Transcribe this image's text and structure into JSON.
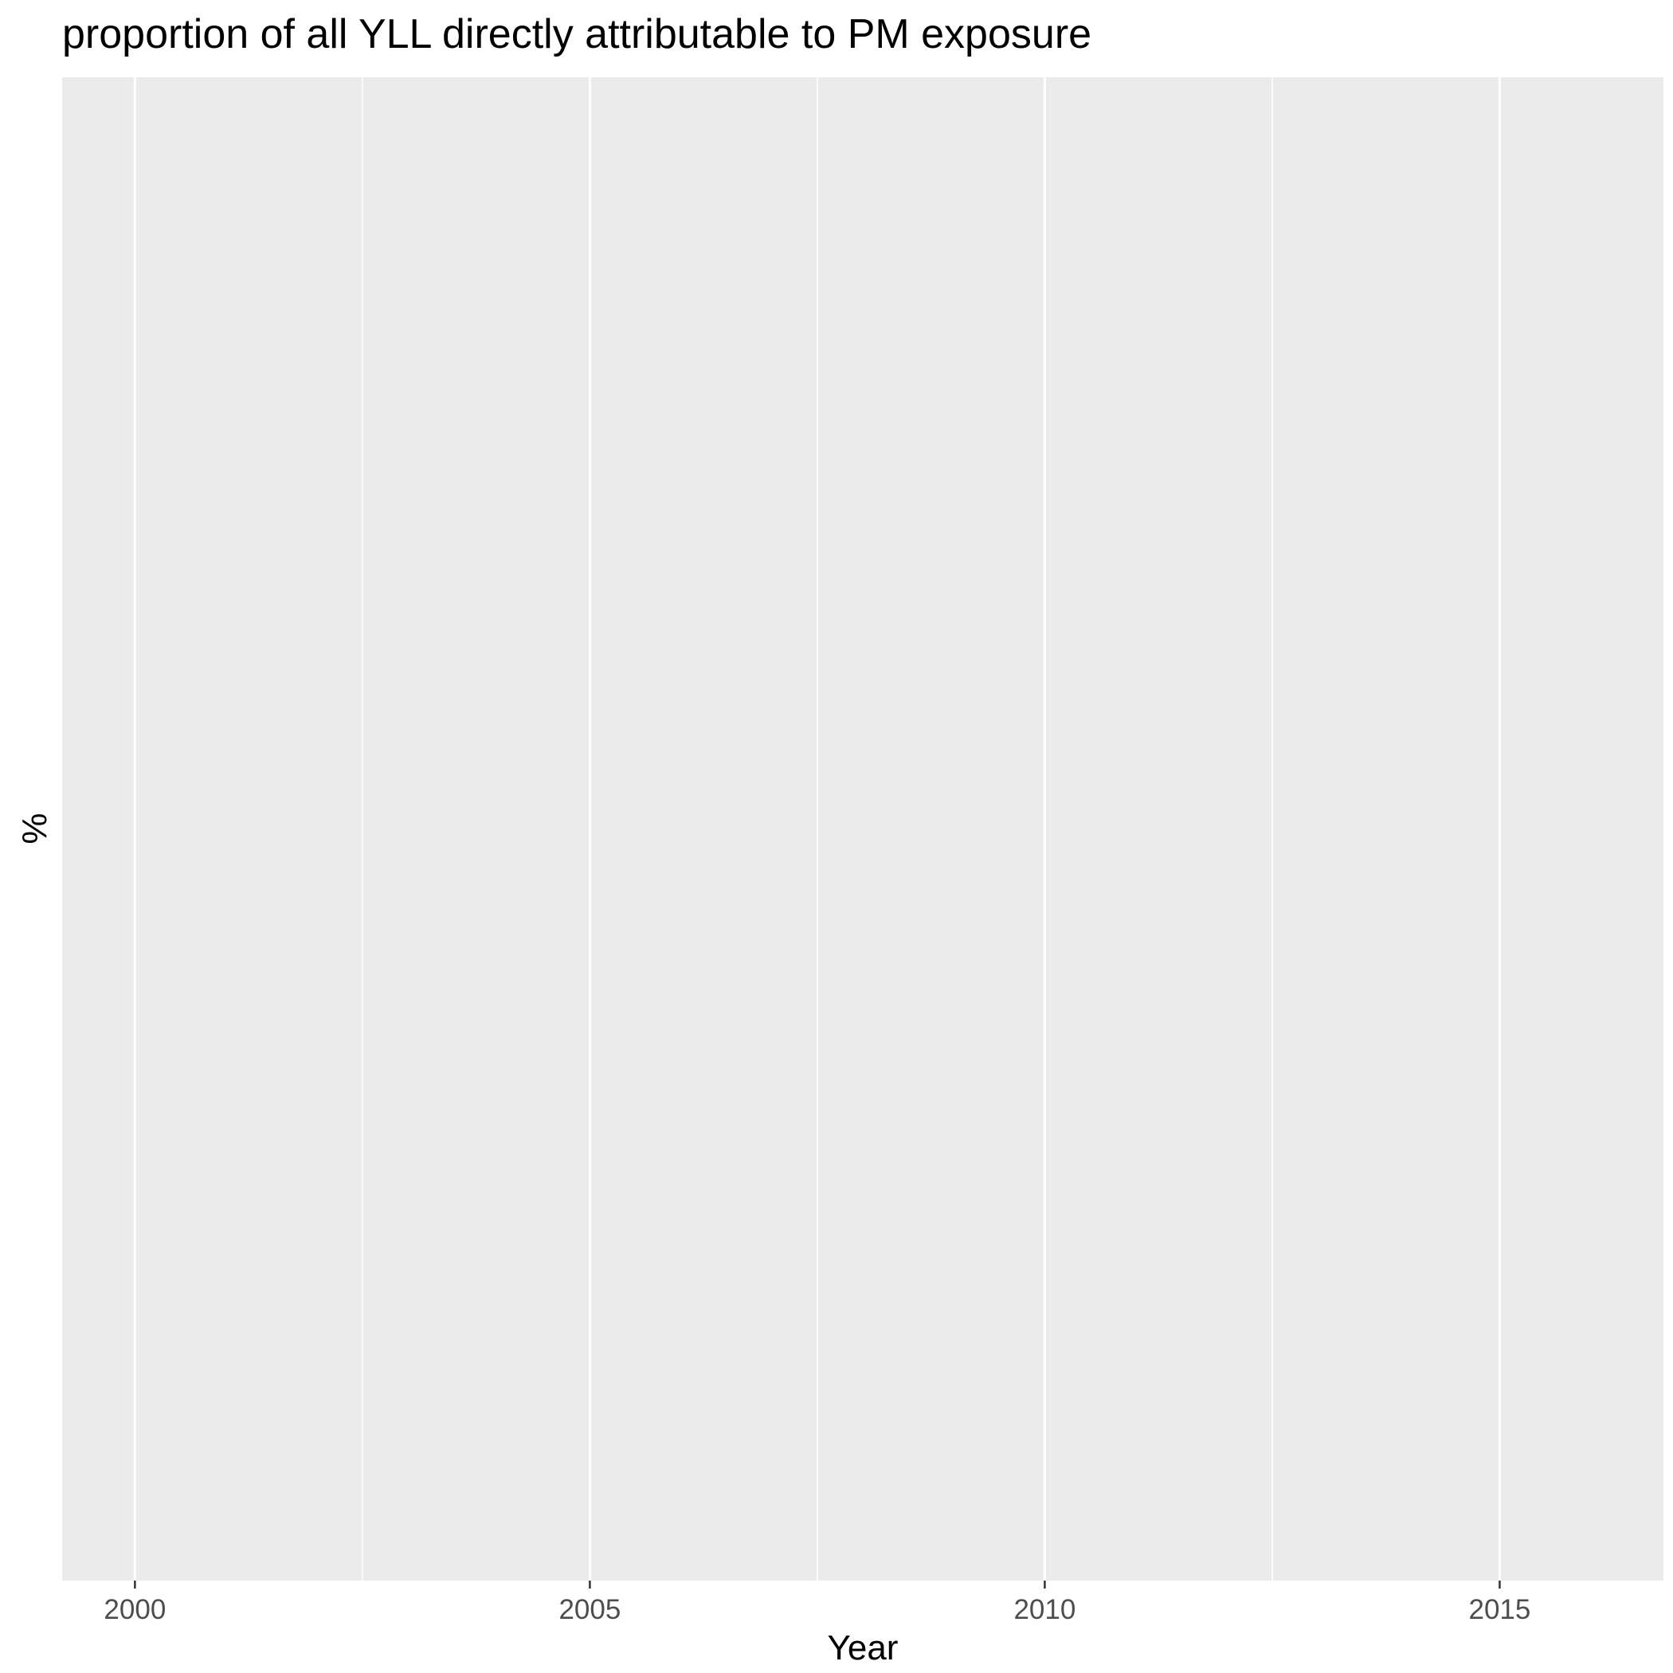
{
  "chart_data": {
    "type": "line",
    "title": "proportion of all YLL directly attributable to PM exposure",
    "xlabel": "Year",
    "ylabel": "%",
    "x_ticks": [
      2000,
      2005,
      2010,
      2015
    ],
    "x_minor_ticks": [
      2002.5,
      2007.5,
      2012.5
    ],
    "xlim": [
      1999.2,
      2016.8
    ],
    "series": [],
    "grid": true,
    "panel_background": "#ebebeb",
    "grid_color": "#ffffff",
    "tick_color": "#333333",
    "tick_label_color": "#4d4d4d"
  }
}
